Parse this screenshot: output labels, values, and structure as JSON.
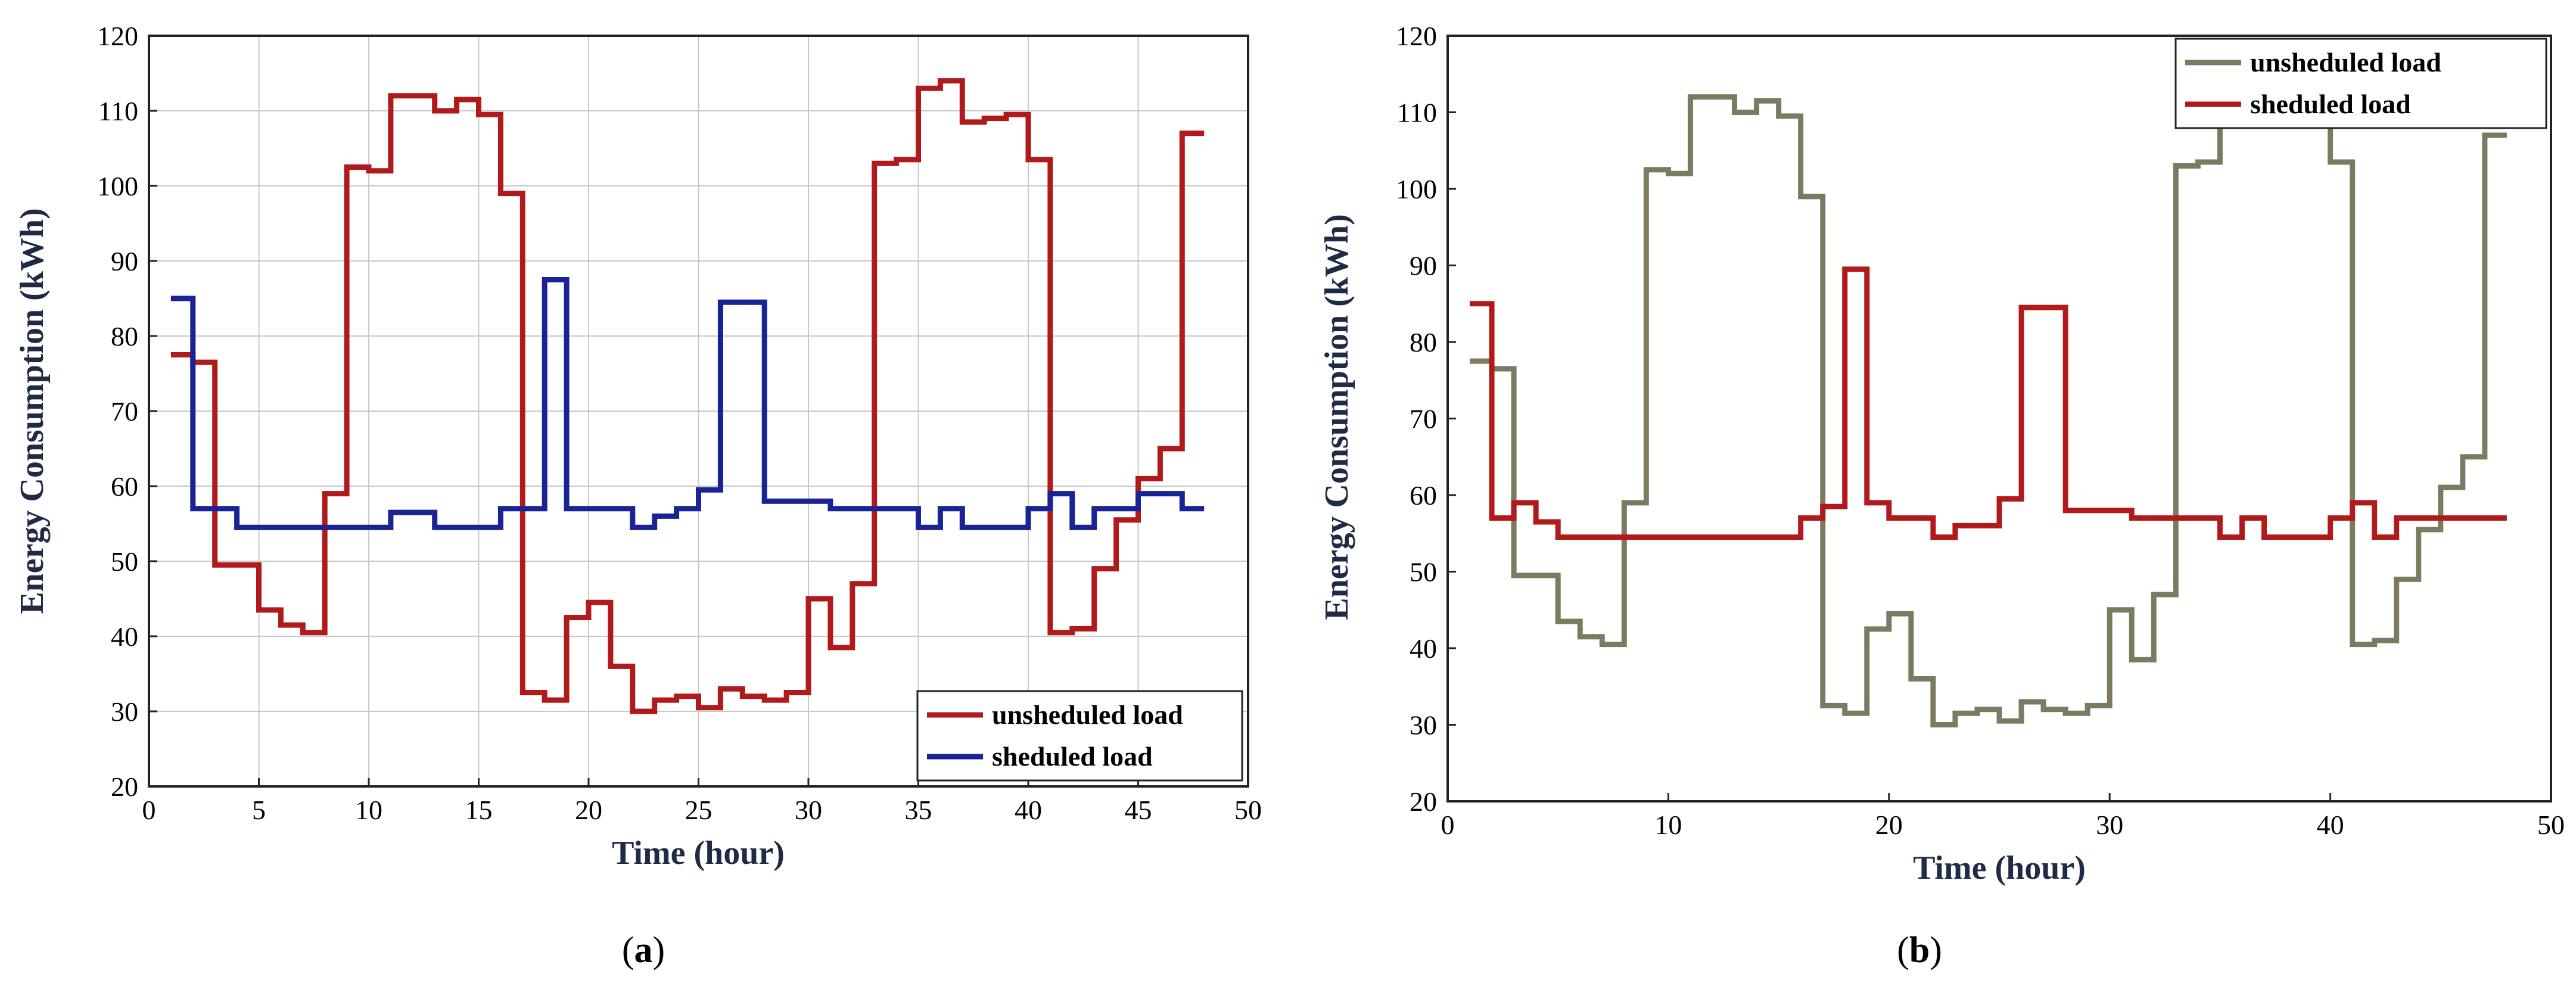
{
  "chart_data": [
    {
      "type": "line",
      "panel_label": "a",
      "title": "",
      "xlabel": "Time (hour)",
      "ylabel": "Energy Consumption (kWh)",
      "xlim": [
        0,
        50
      ],
      "ylim": [
        20,
        120
      ],
      "xticks": [
        0,
        5,
        10,
        15,
        20,
        25,
        30,
        35,
        40,
        45,
        50
      ],
      "yticks": [
        20,
        30,
        40,
        50,
        60,
        70,
        80,
        90,
        100,
        110,
        120
      ],
      "grid": true,
      "step": true,
      "legend_position": "bottom-right",
      "x": [
        1,
        2,
        3,
        4,
        5,
        6,
        7,
        8,
        9,
        10,
        11,
        12,
        13,
        14,
        15,
        16,
        17,
        18,
        19,
        20,
        21,
        22,
        23,
        24,
        25,
        26,
        27,
        28,
        29,
        30,
        31,
        32,
        33,
        34,
        35,
        36,
        37,
        38,
        39,
        40,
        41,
        42,
        43,
        44,
        45,
        46,
        47,
        48
      ],
      "series": [
        {
          "name": "unsheduled load",
          "color": "#b11a1a",
          "values": [
            77.5,
            76.5,
            49.5,
            49.5,
            43.5,
            41.5,
            40.5,
            59,
            102.5,
            102,
            112,
            112,
            110,
            111.5,
            109.5,
            99,
            32.5,
            31.5,
            42.5,
            44.5,
            36,
            30,
            31.5,
            32,
            30.5,
            33,
            32,
            31.5,
            32.5,
            45,
            38.5,
            47,
            103,
            103.5,
            113,
            114,
            108.5,
            109,
            109.5,
            103.5,
            40.5,
            41,
            49,
            55.5,
            61,
            65,
            107,
            107
          ]
        },
        {
          "name": "sheduled load",
          "color": "#1a2396",
          "values": [
            85,
            57,
            57,
            54.5,
            54.5,
            54.5,
            54.5,
            54.5,
            54.5,
            54.5,
            56.5,
            56.5,
            54.5,
            54.5,
            54.5,
            57,
            57,
            87.5,
            57,
            57,
            57,
            54.5,
            56,
            57,
            59.5,
            84.5,
            84.5,
            58,
            58,
            58,
            57,
            57,
            57,
            57,
            54.5,
            57,
            54.5,
            54.5,
            54.5,
            57,
            59,
            54.5,
            57,
            57,
            59,
            59,
            57,
            57
          ]
        }
      ]
    },
    {
      "type": "line",
      "panel_label": "b",
      "title": "",
      "xlabel": "Time (hour)",
      "ylabel": "Energy Consumption (kWh)",
      "xlim": [
        0,
        50
      ],
      "ylim": [
        20,
        120
      ],
      "xticks": [
        0,
        10,
        20,
        30,
        40,
        50
      ],
      "yticks": [
        20,
        30,
        40,
        50,
        60,
        70,
        80,
        90,
        100,
        110,
        120
      ],
      "grid": false,
      "step": true,
      "legend_position": "top-right",
      "x": [
        1,
        2,
        3,
        4,
        5,
        6,
        7,
        8,
        9,
        10,
        11,
        12,
        13,
        14,
        15,
        16,
        17,
        18,
        19,
        20,
        21,
        22,
        23,
        24,
        25,
        26,
        27,
        28,
        29,
        30,
        31,
        32,
        33,
        34,
        35,
        36,
        37,
        38,
        39,
        40,
        41,
        42,
        43,
        44,
        45,
        46,
        47,
        48
      ],
      "series": [
        {
          "name": "unsheduled load",
          "color": "#7d7a62",
          "values": [
            77.5,
            76.5,
            49.5,
            49.5,
            43.5,
            41.5,
            40.5,
            59,
            102.5,
            102,
            112,
            112,
            110,
            111.5,
            109.5,
            99,
            32.5,
            31.5,
            42.5,
            44.5,
            36,
            30,
            31.5,
            32,
            30.5,
            33,
            32,
            31.5,
            32.5,
            45,
            38.5,
            47,
            103,
            103.5,
            113,
            114,
            108.5,
            109,
            109.5,
            103.5,
            40.5,
            41,
            49,
            55.5,
            61,
            65,
            107,
            107
          ]
        },
        {
          "name": "sheduled load",
          "color": "#b11a1a",
          "values": [
            85,
            57,
            59,
            56.5,
            54.5,
            54.5,
            54.5,
            54.5,
            54.5,
            54.5,
            54.5,
            54.5,
            54.5,
            54.5,
            54.5,
            57,
            58.5,
            89.5,
            59,
            57,
            57,
            54.5,
            56,
            56,
            59.5,
            84.5,
            84.5,
            58,
            58,
            58,
            57,
            57,
            57,
            57,
            54.5,
            57,
            54.5,
            54.5,
            54.5,
            57,
            59,
            54.5,
            57,
            57,
            57,
            57,
            57,
            57
          ]
        }
      ]
    }
  ]
}
